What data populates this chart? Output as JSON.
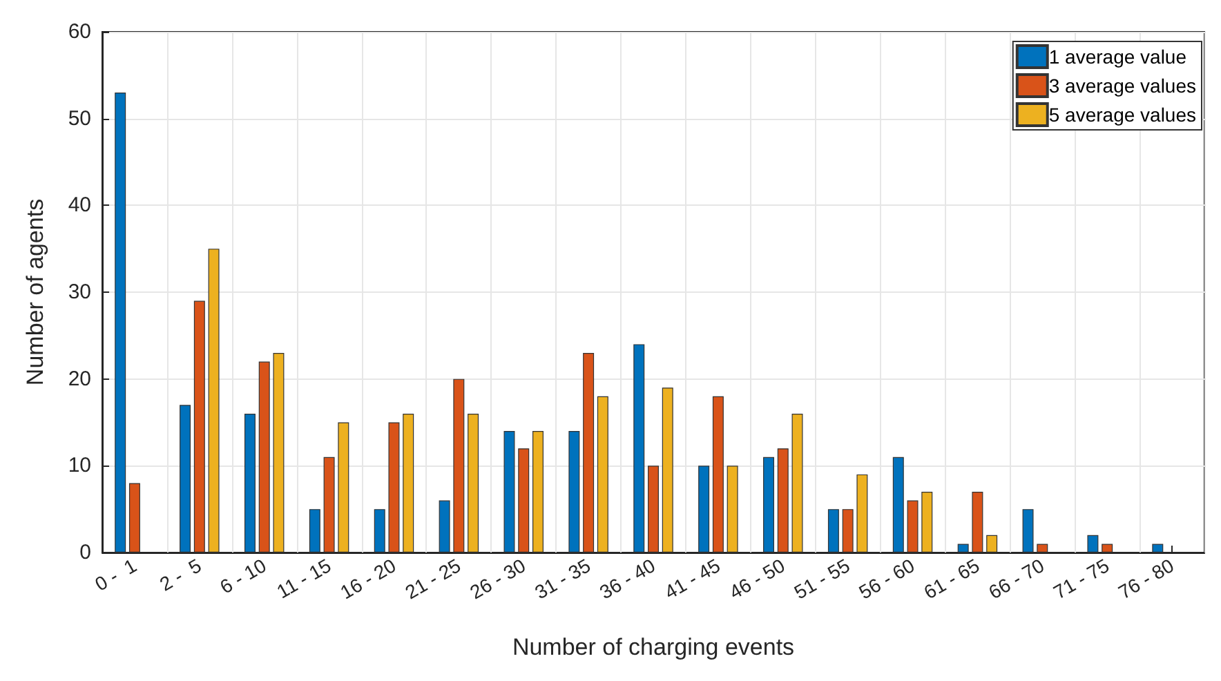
{
  "chart_data": {
    "type": "bar",
    "xlabel": "Number of charging events",
    "ylabel": "Number of agents",
    "categories": [
      "0 -  1",
      "2 -  5",
      "6 - 10",
      "11 - 15",
      "16 - 20",
      "21 - 25",
      "26 - 30",
      "31 - 35",
      "36 - 40",
      "41 - 45",
      "46 - 50",
      "51 - 55",
      "56 - 60",
      "61 - 65",
      "66 - 70",
      "71 - 75",
      "76 - 80"
    ],
    "series": [
      {
        "name": "1 average value",
        "color": "#0072bd",
        "values": [
          53,
          17,
          16,
          5,
          5,
          6,
          14,
          14,
          24,
          10,
          11,
          5,
          11,
          1,
          5,
          2,
          1
        ]
      },
      {
        "name": "3 average values",
        "color": "#d95319",
        "values": [
          8,
          29,
          22,
          11,
          15,
          20,
          12,
          23,
          10,
          18,
          12,
          5,
          6,
          7,
          1,
          1,
          0
        ]
      },
      {
        "name": "5 average values",
        "color": "#edb120",
        "values": [
          0,
          35,
          23,
          15,
          16,
          16,
          14,
          18,
          19,
          10,
          16,
          9,
          7,
          2,
          0,
          0,
          0
        ]
      }
    ],
    "ylim": [
      0,
      60
    ],
    "yticks": [
      0,
      10,
      20,
      30,
      40,
      50,
      60
    ],
    "grid": true,
    "legend": "top right"
  }
}
